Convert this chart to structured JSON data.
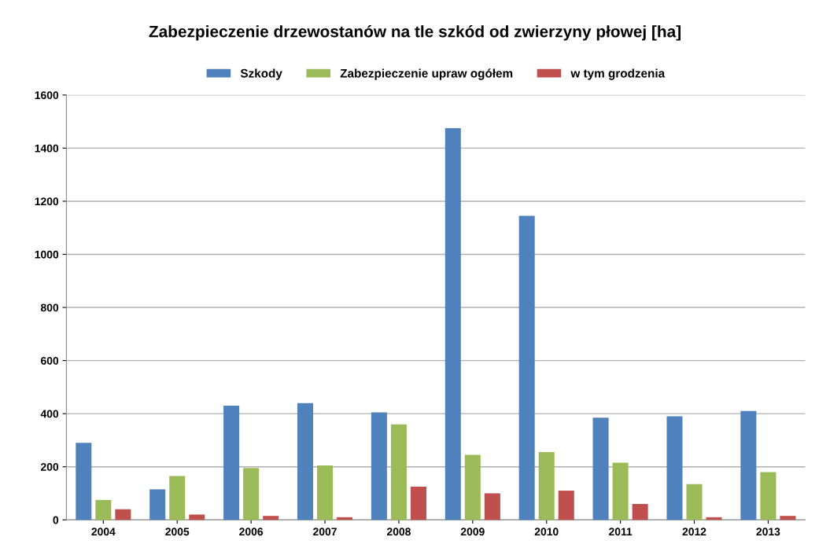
{
  "chart_data": {
    "type": "bar",
    "title": "Zabezpieczenie drzewostanów na tle szkód od zwierzyny płowej [ha]",
    "categories": [
      "2004",
      "2005",
      "2006",
      "2007",
      "2008",
      "2009",
      "2010",
      "2011",
      "2012",
      "2013"
    ],
    "series": [
      {
        "name": "Szkody",
        "color": "#4f81bd",
        "values": [
          290,
          115,
          430,
          440,
          405,
          1475,
          1145,
          385,
          390,
          410
        ]
      },
      {
        "name": "Zabezpieczenie upraw ogółem",
        "color": "#9bbb59",
        "values": [
          75,
          165,
          195,
          205,
          360,
          245,
          255,
          215,
          135,
          180
        ]
      },
      {
        "name": "w tym grodzenia",
        "color": "#c0504d",
        "values": [
          40,
          20,
          15,
          10,
          125,
          100,
          110,
          60,
          10,
          15
        ]
      }
    ],
    "ylim": [
      0,
      1600
    ],
    "yticks": [
      0,
      200,
      400,
      600,
      800,
      1000,
      1200,
      1400,
      1600
    ],
    "grid": "y",
    "legend": "top"
  }
}
